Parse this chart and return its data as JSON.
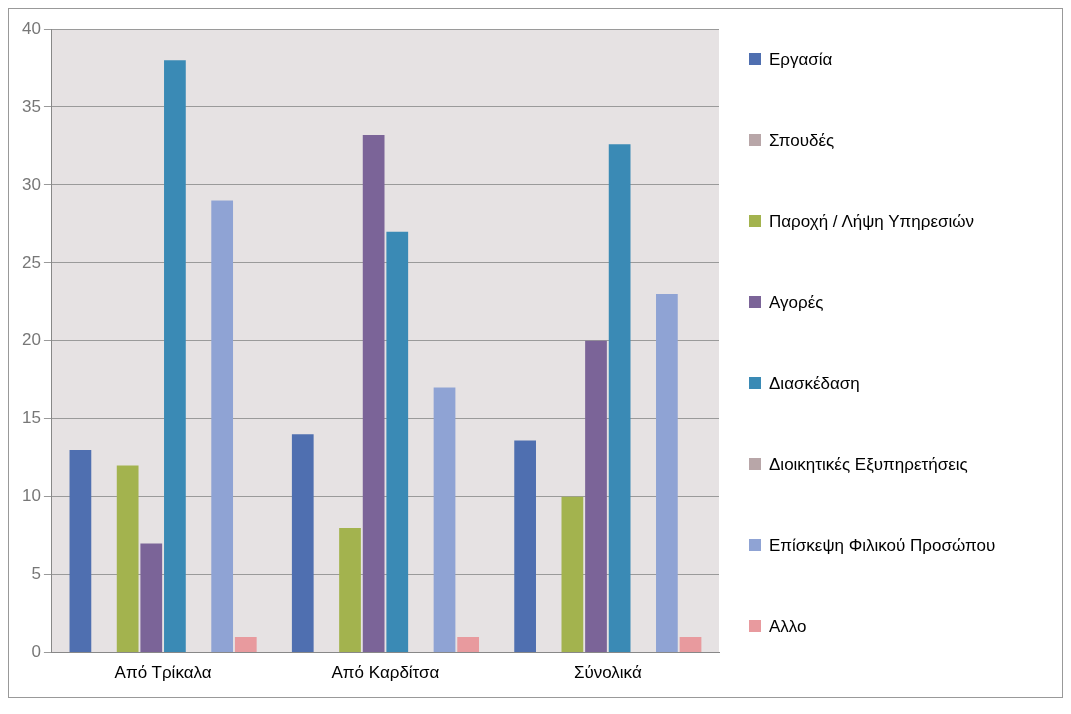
{
  "chart_data": {
    "type": "bar",
    "categories": [
      "Από Τρίκαλα",
      "Από Καρδίτσα",
      "Σύνολικά"
    ],
    "series": [
      {
        "name": "Εργασία",
        "color": "#4f6fb0",
        "values": [
          13,
          14,
          13.6
        ]
      },
      {
        "name": "Σπουδές",
        "color": "#b8a6a8",
        "values": [
          0,
          0,
          0
        ]
      },
      {
        "name": "Παροχή / Λήψη Υπηρεσιών",
        "color": "#a3b34e",
        "values": [
          12,
          8,
          10
        ]
      },
      {
        "name": "Αγορές",
        "color": "#7b6498",
        "values": [
          7,
          33.2,
          20
        ]
      },
      {
        "name": "Διασκέδαση",
        "color": "#3a8ab5",
        "values": [
          38,
          27,
          32.6
        ]
      },
      {
        "name": "Διοικητικές Εξυπηρετήσεις",
        "color": "#b8a6a8",
        "values": [
          0,
          0,
          0
        ]
      },
      {
        "name": "Επίσκεψη Φιλικού Προσώπου",
        "color": "#8fa3d4",
        "values": [
          29,
          17,
          23
        ]
      },
      {
        "name": "Αλλο",
        "color": "#e89a9e",
        "values": [
          1,
          1,
          1
        ]
      }
    ],
    "ylim": [
      0,
      40
    ],
    "yticks": [
      0,
      5,
      10,
      15,
      20,
      25,
      30,
      35,
      40
    ],
    "grid": "y",
    "legend": "right"
  }
}
